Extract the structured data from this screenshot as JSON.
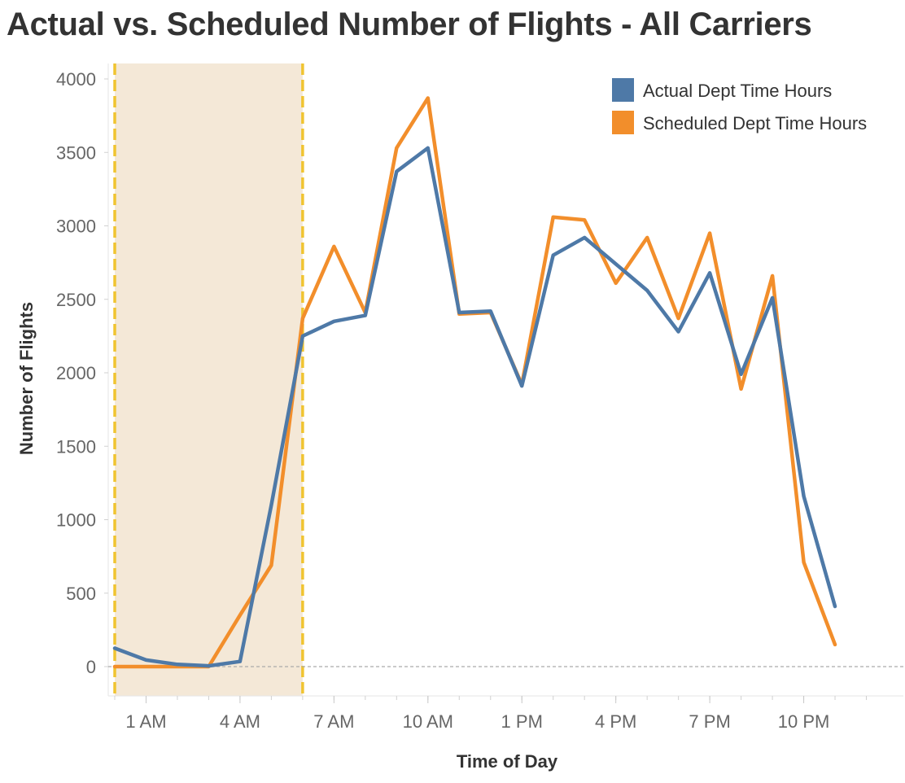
{
  "chart_data": {
    "type": "line",
    "title": "Actual vs. Scheduled Number of Flights - All Carriers",
    "xlabel": "Time of Day",
    "ylabel": "Number of Flights",
    "x_ticks": [
      "1 AM",
      "4 AM",
      "7 AM",
      "10 AM",
      "1 PM",
      "4 PM",
      "7 PM",
      "10 PM"
    ],
    "x_tick_hours": [
      1,
      4,
      7,
      10,
      13,
      16,
      19,
      22
    ],
    "y_ticks": [
      0,
      500,
      1000,
      1500,
      2000,
      2500,
      3000,
      3500,
      4000
    ],
    "ylim": [
      -200,
      4100
    ],
    "xlim": [
      -0.2,
      24.7
    ],
    "grid": false,
    "zero_reference_line": true,
    "legend_position": "top-right",
    "highlight_band": {
      "from_hour": 0,
      "to_hour": 6,
      "fill": "#F4E8D7",
      "border": "#F0C430"
    },
    "x_hours": [
      0,
      1,
      2,
      3,
      4,
      5,
      6,
      7,
      8,
      9,
      10,
      11,
      12,
      13,
      14,
      15,
      16,
      17,
      18,
      19,
      20,
      21,
      22,
      23
    ],
    "series": [
      {
        "name": "Scheduled Dept Time Hours",
        "color": "#F28E2B",
        "values": [
          0,
          0,
          0,
          0,
          350,
          690,
          2370,
          2860,
          2410,
          3530,
          3870,
          2400,
          2410,
          1920,
          3060,
          3040,
          2610,
          2920,
          2370,
          2950,
          1890,
          2660,
          710,
          150
        ]
      },
      {
        "name": "Actual Dept Time Hours",
        "color": "#4E79A7",
        "values": [
          125,
          45,
          15,
          5,
          35,
          1100,
          2250,
          2350,
          2390,
          3370,
          3530,
          2410,
          2420,
          1910,
          2800,
          2920,
          2740,
          2560,
          2280,
          2680,
          1990,
          2510,
          1160,
          410
        ]
      }
    ],
    "legend": [
      {
        "label": "Actual Dept Time Hours",
        "color": "#4E79A7"
      },
      {
        "label": "Scheduled Dept Time Hours",
        "color": "#F28E2B"
      }
    ]
  }
}
